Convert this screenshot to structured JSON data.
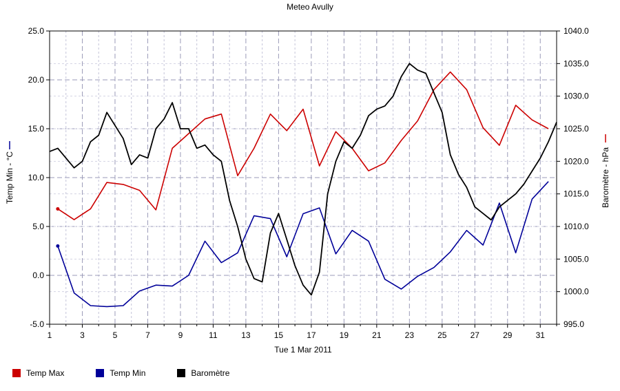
{
  "chart_data": {
    "type": "line",
    "title": "Meteo  Avully",
    "xlabel": "Tue 1 Mar 2011",
    "ylabel_left": "Temp Min - °C",
    "ylabel_right": "Baromètre - hPa",
    "xlim": [
      1,
      32
    ],
    "ylim_left": [
      -5,
      25
    ],
    "ylim_right": [
      995,
      1040
    ],
    "x_ticks": [
      "1",
      "3",
      "5",
      "7",
      "9",
      "11",
      "13",
      "15",
      "17",
      "19",
      "21",
      "23",
      "25",
      "27",
      "29",
      "31"
    ],
    "y_ticks_left": [
      "25.0",
      "20.0",
      "15.0",
      "10.0",
      "5.0",
      "0.0",
      "-5.0"
    ],
    "y_ticks_right": [
      "1040.0",
      "1035.0",
      "1030.0",
      "1025.0",
      "1020.0",
      "1015.0",
      "1010.0",
      "1005.0",
      "1000.0",
      "995.0"
    ],
    "grid": true,
    "series": [
      {
        "name": "Temp Max",
        "color": "#cc0000",
        "axis": "left",
        "x": [
          1.5,
          2.5,
          3.5,
          4.5,
          5.5,
          6.5,
          7.5,
          8.5,
          9.5,
          10.5,
          11.5,
          12.5,
          13.5,
          14.5,
          15.5,
          16.5,
          17.5,
          18.5,
          19.5,
          20.5,
          21.5,
          22.5,
          23.5,
          24.5,
          25.5,
          26.5,
          27.5,
          28.5,
          29.5,
          30.5,
          31.5
        ],
        "values": [
          6.8,
          5.7,
          6.8,
          9.5,
          9.3,
          8.7,
          6.7,
          13.0,
          14.5,
          16.0,
          16.5,
          10.2,
          13.0,
          16.5,
          14.8,
          17.0,
          11.2,
          14.7,
          13.0,
          10.7,
          11.5,
          13.8,
          15.8,
          19.0,
          20.8,
          19.0,
          15.1,
          13.3,
          17.4,
          15.9,
          15.0
        ]
      },
      {
        "name": "Temp Min",
        "color": "#000099",
        "axis": "left",
        "x": [
          1.5,
          2.5,
          3.5,
          4.5,
          5.5,
          6.5,
          7.5,
          8.5,
          9.5,
          10.5,
          11.5,
          12.5,
          13.5,
          14.5,
          15.5,
          16.5,
          17.5,
          18.5,
          19.5,
          20.5,
          21.5,
          22.5,
          23.5,
          24.5,
          25.5,
          26.5,
          27.5,
          28.5,
          29.5,
          30.5,
          31.5
        ],
        "values": [
          3.0,
          -1.8,
          -3.1,
          -3.2,
          -3.1,
          -1.6,
          -1.0,
          -1.1,
          0.0,
          3.5,
          1.3,
          2.3,
          6.1,
          5.8,
          1.9,
          6.3,
          6.9,
          2.2,
          4.6,
          3.5,
          -0.4,
          -1.4,
          -0.1,
          0.8,
          2.4,
          4.6,
          3.1,
          7.4,
          2.3,
          7.8,
          9.6
        ]
      },
      {
        "name": "Baromètre",
        "color": "#000000",
        "axis": "right",
        "x": [
          1.0,
          1.5,
          2.0,
          2.5,
          3.0,
          3.5,
          4.0,
          4.5,
          5.0,
          5.5,
          6.0,
          6.5,
          7.0,
          7.5,
          8.0,
          8.5,
          9.0,
          9.5,
          10.0,
          10.5,
          11.0,
          11.5,
          12.0,
          12.5,
          13.0,
          13.5,
          14.0,
          14.5,
          15.0,
          15.5,
          16.0,
          16.5,
          17.0,
          17.5,
          18.0,
          18.5,
          19.0,
          19.5,
          20.0,
          20.5,
          21.0,
          21.5,
          22.0,
          22.5,
          23.0,
          23.5,
          24.0,
          24.5,
          25.0,
          25.5,
          26.0,
          26.5,
          27.0,
          27.5,
          28.0,
          28.5,
          29.0,
          29.5,
          30.0,
          30.5,
          31.0,
          31.5,
          32.0
        ],
        "values": [
          1021.5,
          1022.0,
          1020.5,
          1019.0,
          1020.0,
          1023.0,
          1024.0,
          1027.5,
          1025.5,
          1023.5,
          1019.5,
          1021.0,
          1020.5,
          1025.0,
          1026.5,
          1029.0,
          1025.0,
          1025.0,
          1022.0,
          1022.5,
          1021.0,
          1020.0,
          1014.0,
          1010.0,
          1005.0,
          1002.0,
          1001.5,
          1009.0,
          1012.0,
          1008.0,
          1004.0,
          1001.0,
          999.5,
          1003.0,
          1015.0,
          1020.0,
          1023.0,
          1022.0,
          1024.0,
          1027.0,
          1028.0,
          1028.5,
          1030.0,
          1033.0,
          1035.0,
          1034.0,
          1033.5,
          1030.5,
          1027.5,
          1021.0,
          1018.0,
          1016.0,
          1013.0,
          1012.0,
          1011.0,
          1013.0,
          1014.0,
          1015.0,
          1016.5,
          1018.5,
          1020.5,
          1023.0,
          1026.0
        ]
      }
    ],
    "legend": [
      {
        "label": "Temp Max",
        "color": "#cc0000"
      },
      {
        "label": "Temp Min",
        "color": "#000099"
      },
      {
        "label": "Baromètre",
        "color": "#000000"
      }
    ],
    "legend_position": "bottom-left"
  }
}
